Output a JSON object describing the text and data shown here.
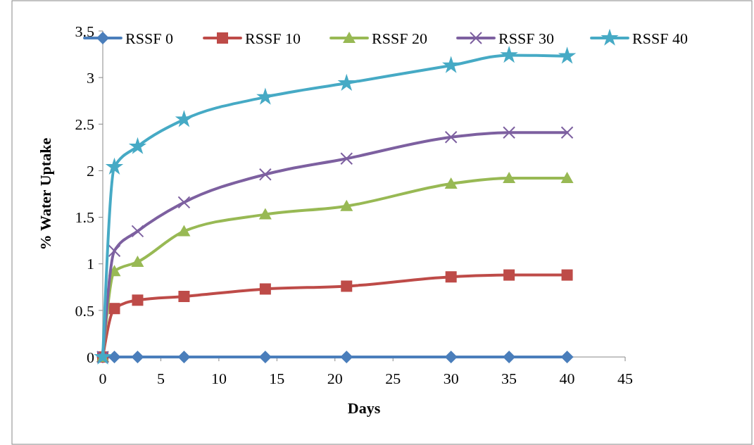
{
  "chart_data": {
    "type": "line",
    "xlabel": "Days",
    "ylabel": "% Water Uptake",
    "x": [
      0,
      1,
      3,
      7,
      14,
      21,
      30,
      35,
      40
    ],
    "xlim": [
      0,
      45
    ],
    "xticks": [
      0,
      5,
      10,
      15,
      20,
      25,
      30,
      35,
      40,
      45
    ],
    "ylim": [
      0,
      3.5
    ],
    "yticks": [
      0,
      0.5,
      1,
      1.5,
      2,
      2.5,
      3,
      3.5
    ],
    "grid": false,
    "legend": "top",
    "series": [
      {
        "name": "RSSF 0",
        "color": "#4a7ebb",
        "marker": "diamond",
        "values": [
          0,
          0,
          0,
          0,
          0,
          0,
          0,
          0,
          0
        ]
      },
      {
        "name": "RSSF 10",
        "color": "#be4b48",
        "marker": "square",
        "values": [
          0,
          0.52,
          0.61,
          0.65,
          0.73,
          0.76,
          0.86,
          0.88,
          0.88
        ]
      },
      {
        "name": "RSSF 20",
        "color": "#98b954",
        "marker": "triangle",
        "values": [
          0,
          0.92,
          1.02,
          1.35,
          1.53,
          1.62,
          1.86,
          1.92,
          1.92
        ]
      },
      {
        "name": "RSSF 30",
        "color": "#7d60a0",
        "marker": "cross",
        "values": [
          0,
          1.14,
          1.35,
          1.66,
          1.96,
          2.13,
          2.36,
          2.41,
          2.41
        ]
      },
      {
        "name": "RSSF 40",
        "color": "#46aac5",
        "marker": "star",
        "values": [
          0,
          2.04,
          2.26,
          2.55,
          2.79,
          2.94,
          3.13,
          3.24,
          3.23
        ]
      }
    ]
  }
}
